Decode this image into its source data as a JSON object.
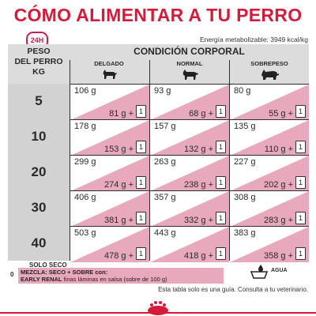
{
  "title": "CÓMO ALIMENTAR A TU PERRO",
  "badge": "24H",
  "energy": "Energía metabolizable: 3949 kcal/kg",
  "table": {
    "weight_header": [
      "PESO",
      "DEL PERRO",
      "KG"
    ],
    "condition_header": "CONDICIÓN CORPORAL",
    "columns": [
      "DELGADO",
      "NORMAL",
      "SOBREPESO"
    ],
    "pouch_symbol": "1",
    "rows": [
      {
        "weight": "5",
        "cells": [
          {
            "dry": "106 g",
            "mix": "81 g +"
          },
          {
            "dry": "93 g",
            "mix": "68 g +"
          },
          {
            "dry": "80 g",
            "mix": "55 g +"
          }
        ]
      },
      {
        "weight": "10",
        "cells": [
          {
            "dry": "178 g",
            "mix": "153 g +"
          },
          {
            "dry": "157 g",
            "mix": "132 g +"
          },
          {
            "dry": "135 g",
            "mix": "110 g +"
          }
        ]
      },
      {
        "weight": "20",
        "cells": [
          {
            "dry": "299 g",
            "mix": "274 g +"
          },
          {
            "dry": "263 g",
            "mix": "238 g +"
          },
          {
            "dry": "227 g",
            "mix": "202 g +"
          }
        ]
      },
      {
        "weight": "30",
        "cells": [
          {
            "dry": "406 g",
            "mix": "381 g +"
          },
          {
            "dry": "357 g",
            "mix": "332 g +"
          },
          {
            "dry": "308 g",
            "mix": "283 g +"
          }
        ]
      },
      {
        "weight": "40",
        "cells": [
          {
            "dry": "503 g",
            "mix": "478 g +"
          },
          {
            "dry": "443 g",
            "mix": "418 g +"
          },
          {
            "dry": "383 g",
            "mix": "358 g +"
          }
        ]
      }
    ]
  },
  "legend": {
    "solo_seco": "SOLO SECO",
    "zero": "0",
    "mix_line1": "MEZCLA: SECO + SOBRE con:",
    "mix_line2_bold": "EARLY RENAL",
    "mix_line2_rest": " finas láminas en salsa (sobre de 100 g)",
    "water": "AGUA"
  },
  "footer_note": "Esta tabla solo es una guía. Consulta a tu veterinario.",
  "colors": {
    "accent": "#d71a3a",
    "pink": "#e9a9bd",
    "grey": "#d2d2d2"
  }
}
